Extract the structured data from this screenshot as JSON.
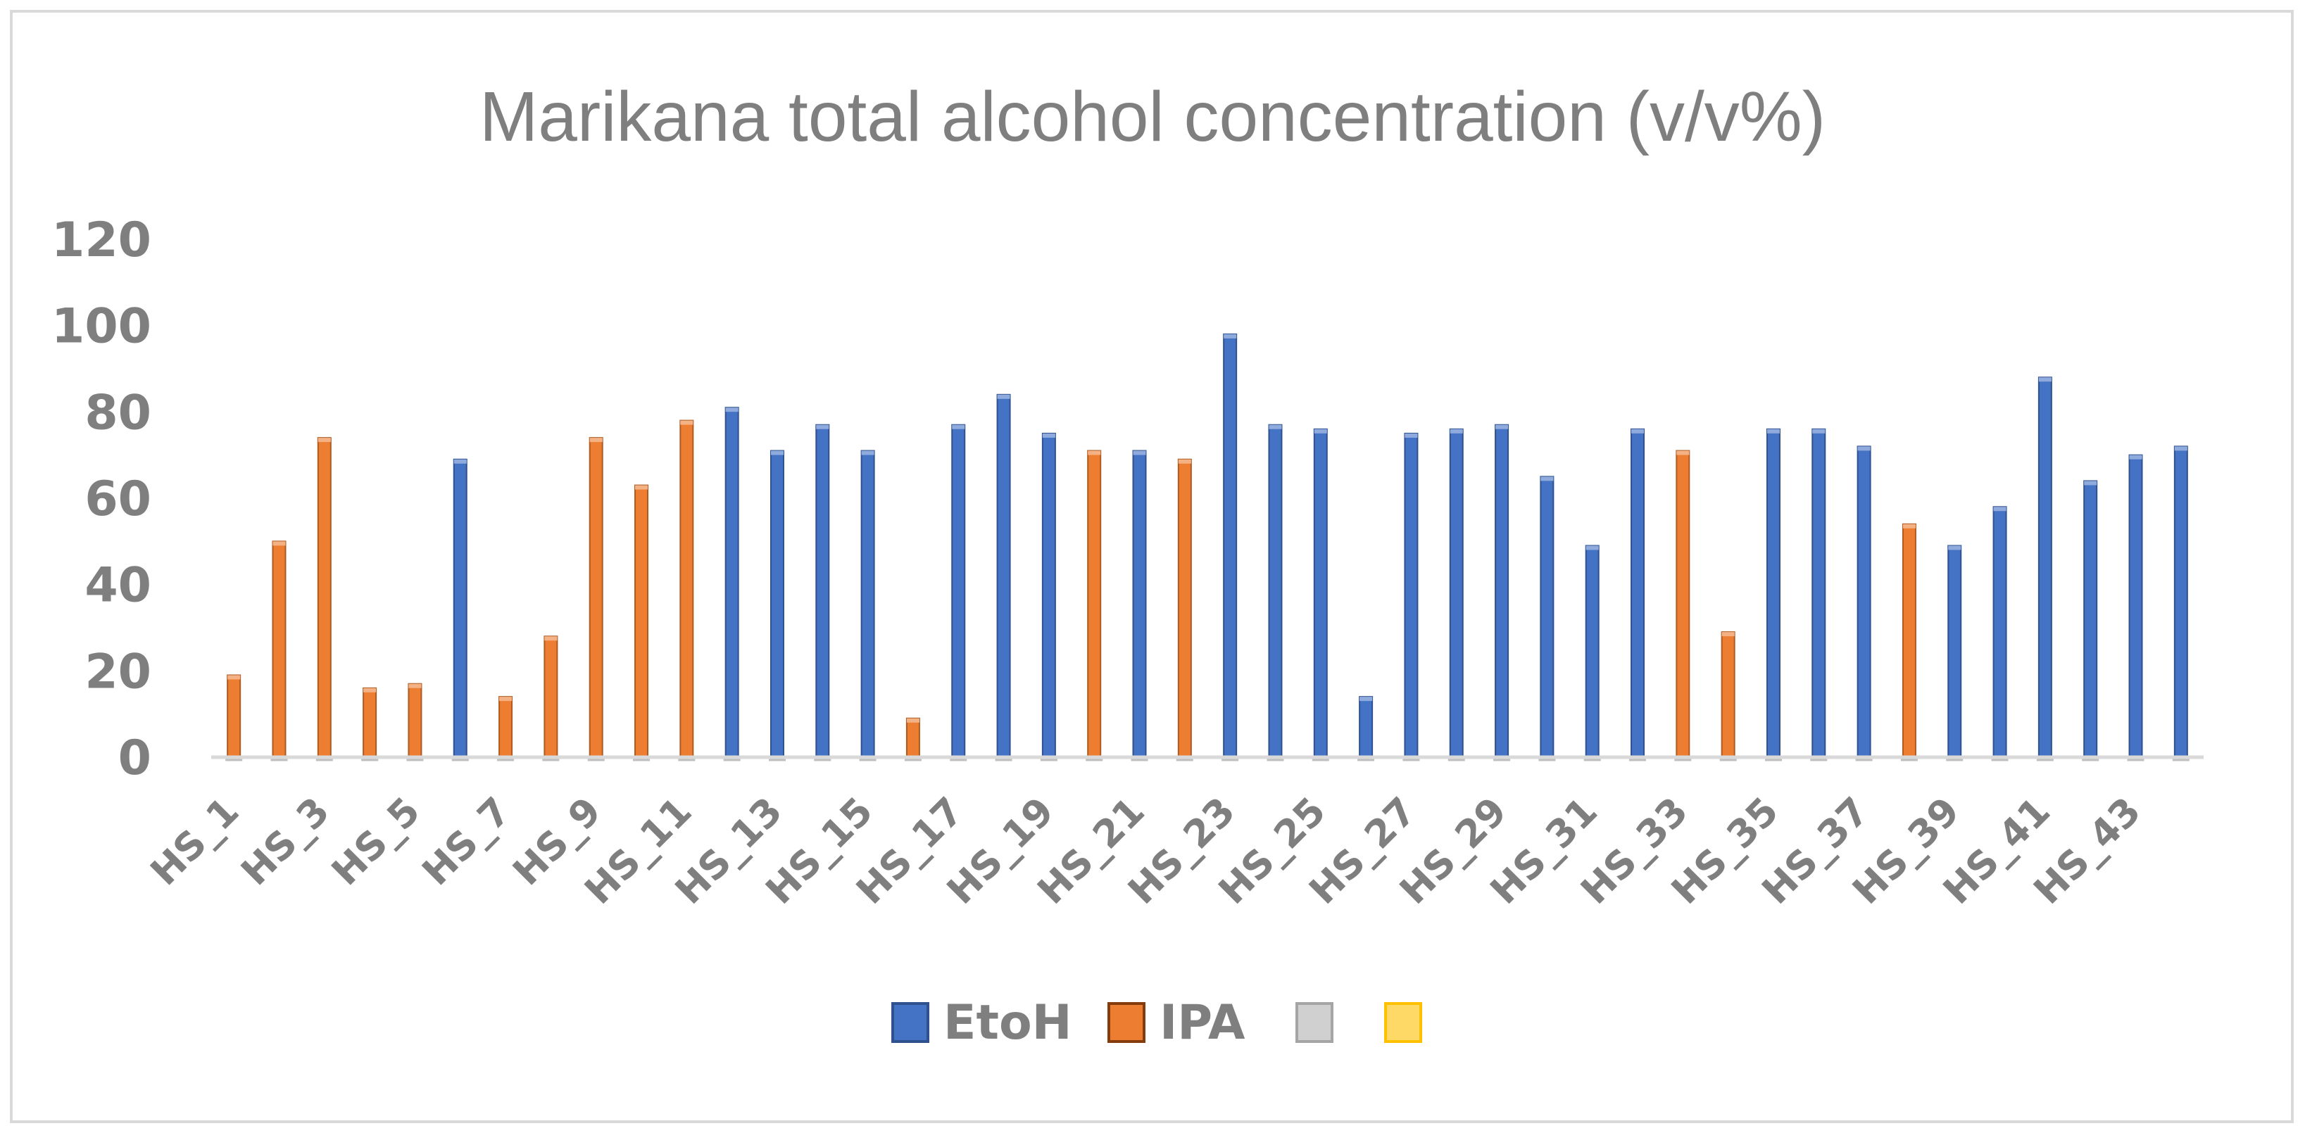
{
  "chart_data": {
    "type": "bar",
    "title": "Marikana total alcohol concentration (v/v%)",
    "xlabel": "",
    "ylabel": "",
    "ylim": [
      0,
      120
    ],
    "yticks": [
      0,
      20,
      40,
      60,
      80,
      100,
      120
    ],
    "categories": [
      "HS_1",
      "HS_2",
      "HS_3",
      "HS_4",
      "HS_5",
      "HS_6",
      "HS_7",
      "HS_8",
      "HS_9",
      "HS_10",
      "HS_11",
      "HS_12",
      "HS_13",
      "HS_14",
      "HS_15",
      "HS_16",
      "HS_17",
      "HS_18",
      "HS_19",
      "HS_20",
      "HS_21",
      "HS_22",
      "HS_23",
      "HS_24",
      "HS_25",
      "HS_26",
      "HS_27",
      "HS_28",
      "HS_29",
      "HS_30",
      "HS_31",
      "HS_32",
      "HS_33",
      "HS_34",
      "HS_35",
      "HS_36",
      "HS_37",
      "HS_38",
      "HS_39",
      "HS_40",
      "HS_41",
      "HS_42",
      "HS_43",
      "HS_44"
    ],
    "visible_tick_labels": [
      "HS_1",
      "HS_3",
      "HS_5",
      "HS_7",
      "HS_9",
      "HS_11",
      "HS_13",
      "HS_15",
      "HS_17",
      "HS_19",
      "HS_21",
      "HS_23",
      "HS_25",
      "HS_27",
      "HS_29",
      "HS_31",
      "HS_33",
      "HS_35",
      "HS_37",
      "HS_39",
      "HS_41",
      "HS_43"
    ],
    "series": [
      {
        "name": "EtoH",
        "color": "#4472c4",
        "values": [
          0,
          0,
          0,
          0,
          0,
          69,
          0,
          0,
          0,
          0,
          0,
          81,
          71,
          77,
          71,
          0,
          77,
          84,
          75,
          0,
          71,
          0,
          98,
          77,
          76,
          14,
          75,
          76,
          77,
          65,
          49,
          76,
          0,
          0,
          76,
          76,
          72,
          0,
          49,
          58,
          88,
          64,
          70,
          72
        ]
      },
      {
        "name": "IPA",
        "color": "#ed7d31",
        "values": [
          19,
          50,
          74,
          16,
          17,
          0,
          14,
          28,
          74,
          63,
          78,
          0,
          0,
          0,
          0,
          9,
          0,
          0,
          0,
          71,
          0,
          69,
          0,
          0,
          0,
          0,
          0,
          0,
          0,
          0,
          0,
          0,
          71,
          29,
          0,
          0,
          0,
          54,
          0,
          0,
          0,
          0,
          0,
          0
        ]
      }
    ],
    "legend": [
      {
        "label": "EtoH",
        "color": "#4472c4"
      },
      {
        "label": "IPA",
        "color": "#ed7d31"
      },
      {
        "label": "",
        "color": "#a5a5a5"
      },
      {
        "label": "",
        "color": "#ffc000"
      }
    ],
    "legend_position": "bottom"
  }
}
